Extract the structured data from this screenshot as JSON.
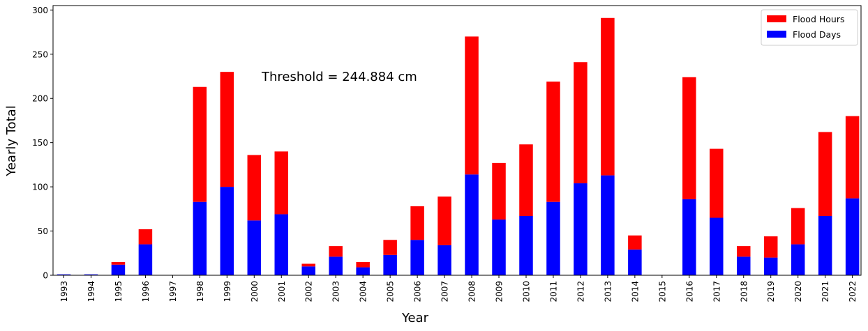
{
  "chart_data": {
    "type": "bar",
    "stacked": true,
    "categories": [
      "1993",
      "1994",
      "1995",
      "1996",
      "1997",
      "1998",
      "1999",
      "2000",
      "2001",
      "2002",
      "2003",
      "2004",
      "2005",
      "2006",
      "2007",
      "2008",
      "2009",
      "2010",
      "2011",
      "2012",
      "2013",
      "2014",
      "2015",
      "2016",
      "2017",
      "2018",
      "2019",
      "2020",
      "2021",
      "2022"
    ],
    "series": [
      {
        "name": "Flood Days",
        "color": "#0000ff",
        "values": [
          1,
          1,
          12,
          35,
          0,
          83,
          100,
          62,
          69,
          10,
          21,
          9,
          23,
          40,
          34,
          114,
          63,
          67,
          83,
          104,
          113,
          29,
          0,
          86,
          65,
          21,
          20,
          35,
          67,
          87
        ]
      },
      {
        "name": "Flood Hours",
        "color": "#ff0000",
        "values": [
          0,
          0,
          3,
          17,
          0,
          130,
          130,
          74,
          71,
          3,
          12,
          6,
          17,
          38,
          55,
          156,
          64,
          81,
          136,
          137,
          178,
          16,
          0,
          138,
          78,
          12,
          24,
          41,
          95,
          93
        ]
      }
    ],
    "xlabel": "Year",
    "ylabel": "Yearly Total",
    "ylim": [
      0,
      305
    ],
    "yticks": [
      0,
      50,
      100,
      150,
      200,
      250,
      300
    ],
    "annotation": "Threshold = 244.884 cm",
    "legend_position": "top-right",
    "legend_order": [
      "Flood Hours",
      "Flood Days"
    ],
    "grid": false
  }
}
